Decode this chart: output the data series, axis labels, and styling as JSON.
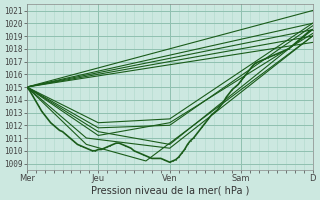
{
  "xlabel": "Pression niveau de la mer( hPa )",
  "ylim": [
    1008.5,
    1021.5
  ],
  "yticks": [
    1009,
    1010,
    1011,
    1012,
    1013,
    1014,
    1015,
    1016,
    1017,
    1018,
    1019,
    1020,
    1021
  ],
  "day_labels": [
    "Mer",
    "Jeu",
    "Ven",
    "Sam",
    "D"
  ],
  "day_positions": [
    0,
    48,
    96,
    144,
    192
  ],
  "background_color": "#cce8e0",
  "grid_minor_color": "#b0d8cc",
  "grid_major_color": "#90c0b0",
  "line_color": "#1a5c1a",
  "n_hours": 192,
  "series": [
    {
      "x": [
        0,
        2,
        4,
        6,
        8,
        10,
        12,
        14,
        16,
        18,
        20,
        22,
        24,
        26,
        28,
        30,
        32,
        34,
        36,
        38,
        40,
        42,
        44,
        46,
        48,
        50,
        52,
        54,
        56,
        58,
        60,
        62,
        64,
        66,
        68,
        70,
        72,
        74,
        76,
        78,
        80,
        82,
        84,
        86,
        88,
        90,
        92,
        94,
        96,
        98,
        100,
        102,
        104,
        106,
        108,
        110,
        112,
        114,
        116,
        118,
        120,
        122,
        124,
        126,
        128,
        130,
        132,
        134,
        136,
        138,
        140,
        142,
        144,
        146,
        148,
        150,
        152,
        154,
        156,
        158,
        160,
        162,
        164,
        166,
        168,
        170,
        172,
        174,
        176,
        178,
        180,
        182,
        184,
        186,
        188,
        190,
        192
      ],
      "y": [
        1015.0,
        1014.7,
        1014.3,
        1013.9,
        1013.5,
        1013.1,
        1012.8,
        1012.5,
        1012.2,
        1012.0,
        1011.8,
        1011.6,
        1011.5,
        1011.3,
        1011.1,
        1010.9,
        1010.7,
        1010.5,
        1010.4,
        1010.3,
        1010.2,
        1010.1,
        1010.0,
        1010.0,
        1010.1,
        1010.1,
        1010.2,
        1010.3,
        1010.4,
        1010.5,
        1010.6,
        1010.6,
        1010.5,
        1010.4,
        1010.3,
        1010.2,
        1010.0,
        1009.9,
        1009.8,
        1009.7,
        1009.6,
        1009.5,
        1009.4,
        1009.4,
        1009.4,
        1009.4,
        1009.3,
        1009.2,
        1009.1,
        1009.2,
        1009.3,
        1009.5,
        1009.8,
        1010.1,
        1010.5,
        1010.8,
        1011.0,
        1011.3,
        1011.6,
        1011.9,
        1012.2,
        1012.5,
        1012.8,
        1013.0,
        1013.2,
        1013.5,
        1013.8,
        1014.2,
        1014.5,
        1014.8,
        1015.0,
        1015.2,
        1015.5,
        1015.8,
        1016.1,
        1016.4,
        1016.7,
        1016.9,
        1017.0,
        1017.1,
        1017.2,
        1017.3,
        1017.4,
        1017.5,
        1017.6,
        1017.7,
        1017.8,
        1017.9,
        1018.0,
        1018.2,
        1018.4,
        1018.6,
        1018.8,
        1019.0,
        1019.2,
        1019.4,
        1019.5
      ],
      "style": "jagged",
      "lw": 1.2
    },
    {
      "x": [
        0,
        192
      ],
      "y": [
        1015.0,
        1021.0
      ],
      "style": "straight",
      "lw": 0.8
    },
    {
      "x": [
        0,
        192
      ],
      "y": [
        1015.0,
        1020.0
      ],
      "style": "straight",
      "lw": 0.8
    },
    {
      "x": [
        0,
        192
      ],
      "y": [
        1015.0,
        1019.5
      ],
      "style": "straight",
      "lw": 0.8
    },
    {
      "x": [
        0,
        192
      ],
      "y": [
        1015.0,
        1019.0
      ],
      "style": "straight",
      "lw": 0.8
    },
    {
      "x": [
        0,
        192
      ],
      "y": [
        1015.0,
        1018.5
      ],
      "style": "straight",
      "lw": 0.8
    },
    {
      "x": [
        0,
        48,
        96,
        192
      ],
      "y": [
        1015.0,
        1012.2,
        1012.5,
        1020.0
      ],
      "style": "bent",
      "lw": 0.8
    },
    {
      "x": [
        0,
        48,
        96,
        192
      ],
      "y": [
        1015.0,
        1011.8,
        1012.0,
        1019.8
      ],
      "style": "bent",
      "lw": 0.8
    },
    {
      "x": [
        0,
        48,
        96,
        192
      ],
      "y": [
        1015.0,
        1011.2,
        1012.2,
        1019.2
      ],
      "style": "bent",
      "lw": 0.8
    },
    {
      "x": [
        0,
        48,
        96,
        192
      ],
      "y": [
        1015.0,
        1011.5,
        1010.5,
        1019.5
      ],
      "style": "bent",
      "lw": 0.8
    },
    {
      "x": [
        0,
        40,
        96,
        192
      ],
      "y": [
        1015.0,
        1011.0,
        1010.2,
        1019.0
      ],
      "style": "bent",
      "lw": 0.8
    },
    {
      "x": [
        0,
        40,
        80,
        192
      ],
      "y": [
        1015.0,
        1010.5,
        1009.2,
        1019.0
      ],
      "style": "bent",
      "lw": 0.8
    }
  ]
}
